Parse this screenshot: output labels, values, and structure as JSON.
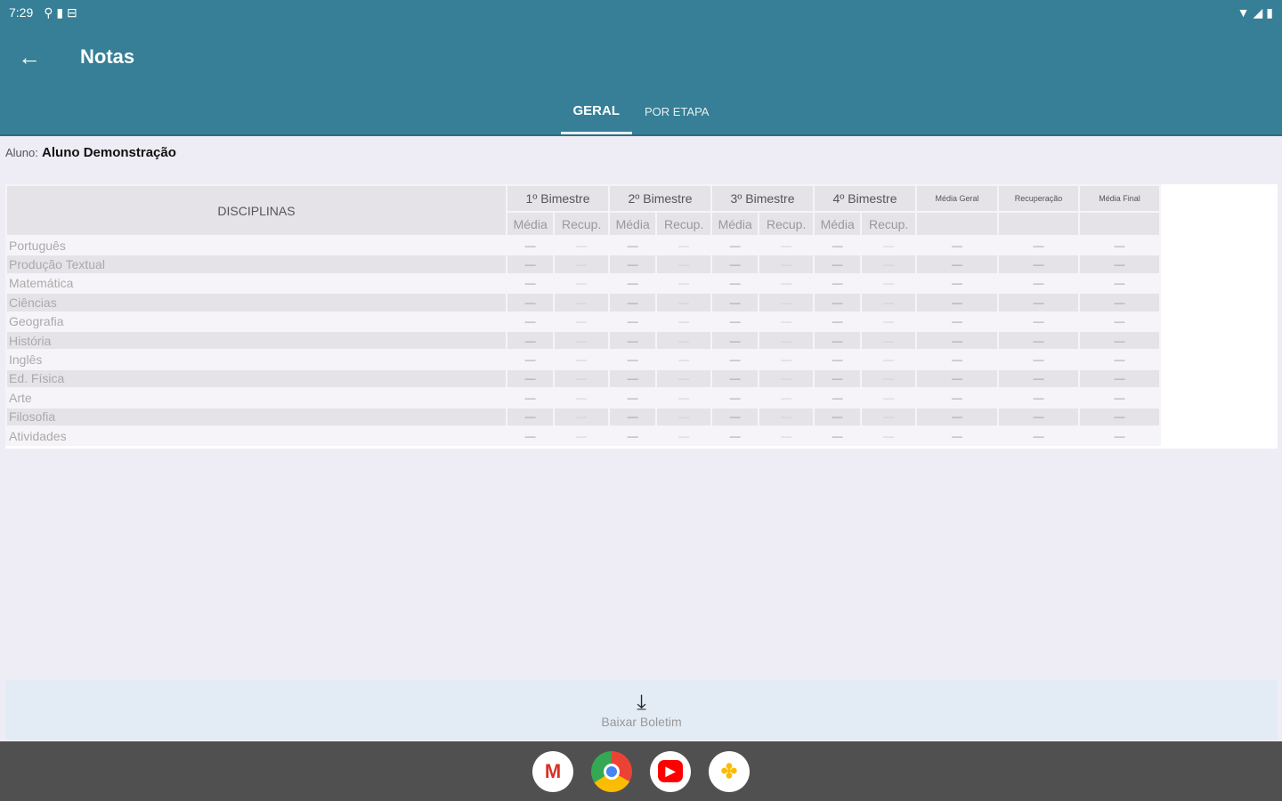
{
  "status": {
    "time": "7:29"
  },
  "appbar": {
    "title": "Notas"
  },
  "tabs": [
    {
      "label": "GERAL",
      "active": true
    },
    {
      "label": "POR ETAPA",
      "active": false
    }
  ],
  "student": {
    "label": "Aluno:",
    "name": "Aluno Demonstração"
  },
  "table": {
    "disciplines_header": "DISCIPLINAS",
    "periods": [
      "1º Bimestre",
      "2º Bimestre",
      "3º Bimestre",
      "4º Bimestre"
    ],
    "sub": [
      "Média",
      "Recup."
    ],
    "extra": [
      "Média Geral",
      "Recuperação",
      "Média Final"
    ],
    "rows": [
      "Português",
      "Produção Textual",
      "Matemática",
      "Ciências",
      "Geografia",
      "História",
      "Inglês",
      "Ed. Física",
      "Arte",
      "Filosofia",
      "Atividades"
    ],
    "empty": "—"
  },
  "bottom": {
    "label": "Baixar Boletim",
    "icon": "download-icon"
  },
  "nav": {
    "apps": [
      "Gmail",
      "Chrome",
      "YouTube",
      "Photos"
    ]
  },
  "colors": {
    "primary": "#367f96",
    "background": "#eeedf5"
  }
}
